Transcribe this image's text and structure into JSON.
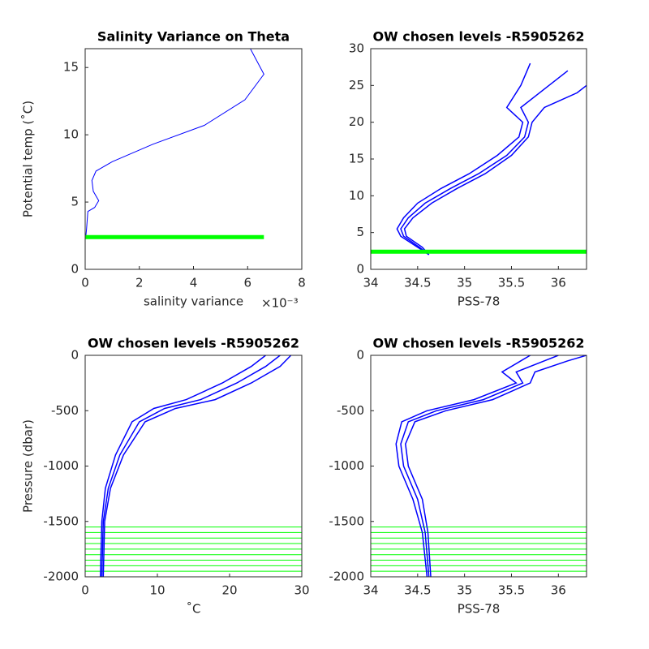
{
  "chart_data": [
    {
      "type": "line",
      "title": "Salinity Variance on Theta",
      "xlabel": "salinity variance",
      "x_exponent": "×10⁻³",
      "ylabel": "Potential temp (˚C)",
      "xlim": [
        0,
        8
      ],
      "ylim": [
        0,
        16.4
      ],
      "xticks": [
        0,
        2,
        4,
        6,
        8
      ],
      "yticks": [
        0,
        5,
        10,
        15
      ],
      "series": [
        {
          "color": "#0000ff",
          "linewidth": 1,
          "x": [
            6.1,
            6.6,
            5.9,
            4.4,
            2.5,
            1.0,
            0.4,
            0.25,
            0.3,
            0.5,
            0.35,
            0.1,
            0.05,
            0.02
          ],
          "values": [
            16.4,
            14.5,
            12.6,
            10.7,
            9.3,
            8.0,
            7.3,
            6.6,
            5.8,
            5.1,
            4.6,
            4.3,
            3.0,
            2.4
          ]
        },
        {
          "color": "#00ff00",
          "linewidth": 5,
          "x": [
            0,
            6.6
          ],
          "values": [
            2.4,
            2.4
          ]
        }
      ]
    },
    {
      "type": "line",
      "title": "OW chosen levels -R5905262",
      "xlabel": "PSS-78",
      "xlim": [
        34,
        36.3
      ],
      "ylim": [
        0,
        30
      ],
      "xticks": [
        34,
        34.5,
        35,
        35.5,
        36
      ],
      "yticks": [
        0,
        5,
        10,
        15,
        20,
        25,
        30
      ],
      "series": [
        {
          "color": "#0000ff",
          "linewidth": 1.5,
          "x": [
            34.62,
            34.5,
            34.32,
            34.28,
            34.35,
            34.5,
            34.75,
            35.05,
            35.35,
            35.58,
            35.62,
            35.45,
            35.6,
            35.7
          ],
          "values": [
            2,
            3,
            4.5,
            5.5,
            7,
            9,
            11,
            13,
            15.5,
            18,
            20,
            22,
            25,
            28
          ]
        },
        {
          "color": "#0000ff",
          "linewidth": 1.5,
          "x": [
            34.62,
            34.52,
            34.35,
            34.32,
            34.4,
            34.58,
            34.85,
            35.15,
            35.45,
            35.64,
            35.68,
            35.6,
            35.9,
            36.1
          ],
          "values": [
            2,
            3,
            4.5,
            5.5,
            7,
            9,
            11,
            13,
            15.5,
            18,
            20,
            22,
            25,
            27
          ]
        },
        {
          "color": "#0000ff",
          "linewidth": 1.5,
          "x": [
            34.62,
            34.55,
            34.38,
            34.36,
            34.45,
            34.65,
            34.92,
            35.22,
            35.5,
            35.68,
            35.72,
            35.85,
            36.2,
            36.3
          ],
          "values": [
            2,
            3,
            4.5,
            5.5,
            7,
            9,
            11,
            13,
            15.5,
            18,
            20,
            22,
            24,
            25
          ]
        },
        {
          "color": "#00ff00",
          "linewidth": 5,
          "x": [
            34,
            36.3
          ],
          "values": [
            2.4,
            2.4
          ]
        }
      ]
    },
    {
      "type": "line",
      "title": "OW chosen levels -R5905262",
      "xlabel": "˚C",
      "ylabel": "Pressure (dbar)",
      "xlim": [
        0,
        30
      ],
      "ylim": [
        -2000,
        0
      ],
      "xticks": [
        0,
        10,
        20,
        30
      ],
      "yticks": [
        -2000,
        -1500,
        -1000,
        -500,
        0
      ],
      "series": [
        {
          "color": "#0000ff",
          "linewidth": 1.5,
          "x": [
            2.1,
            2.3,
            2.8,
            4.2,
            6.5,
            9.5,
            14,
            19,
            23,
            25
          ],
          "values": [
            -2000,
            -1500,
            -1200,
            -900,
            -600,
            -480,
            -400,
            -250,
            -100,
            0
          ]
        },
        {
          "color": "#0000ff",
          "linewidth": 1.5,
          "x": [
            2.3,
            2.5,
            3.2,
            4.8,
            7.5,
            11,
            16,
            21,
            25,
            27
          ],
          "values": [
            -2000,
            -1500,
            -1200,
            -900,
            -600,
            -480,
            -400,
            -250,
            -100,
            0
          ]
        },
        {
          "color": "#0000ff",
          "linewidth": 1.5,
          "x": [
            2.5,
            2.7,
            3.5,
            5.3,
            8.3,
            12.5,
            18,
            23,
            27,
            28.5
          ],
          "values": [
            -2000,
            -1500,
            -1200,
            -900,
            -600,
            -480,
            -400,
            -250,
            -100,
            0
          ]
        }
      ],
      "hlines": {
        "color": "#00ff00",
        "values": [
          -1550,
          -1600,
          -1650,
          -1700,
          -1750,
          -1800,
          -1850,
          -1900,
          -1950,
          -2000
        ]
      }
    },
    {
      "type": "line",
      "title": "OW chosen levels -R5905262",
      "xlabel": "PSS-78",
      "xlim": [
        34,
        36.3
      ],
      "ylim": [
        -2000,
        0
      ],
      "xticks": [
        34,
        34.5,
        35,
        35.5,
        36
      ],
      "yticks": [
        -2000,
        -1500,
        -1000,
        -500,
        0
      ],
      "series": [
        {
          "color": "#0000ff",
          "linewidth": 1.5,
          "x": [
            34.6,
            34.55,
            34.45,
            34.3,
            34.27,
            34.33,
            34.6,
            35.1,
            35.55,
            35.4,
            35.6,
            35.7
          ],
          "values": [
            -2000,
            -1600,
            -1300,
            -1000,
            -800,
            -600,
            -500,
            -400,
            -250,
            -150,
            -50,
            0
          ]
        },
        {
          "color": "#0000ff",
          "linewidth": 1.5,
          "x": [
            34.62,
            34.58,
            34.5,
            34.35,
            34.32,
            34.4,
            34.7,
            35.2,
            35.62,
            35.55,
            35.85,
            36.0
          ],
          "values": [
            -2000,
            -1600,
            -1300,
            -1000,
            -800,
            -600,
            -500,
            -400,
            -250,
            -150,
            -50,
            0
          ]
        },
        {
          "color": "#0000ff",
          "linewidth": 1.5,
          "x": [
            34.64,
            34.61,
            34.55,
            34.4,
            34.37,
            34.47,
            34.8,
            35.3,
            35.7,
            35.75,
            36.1,
            36.3
          ],
          "values": [
            -2000,
            -1600,
            -1300,
            -1000,
            -800,
            -600,
            -500,
            -400,
            -250,
            -150,
            -50,
            0
          ]
        }
      ],
      "hlines": {
        "color": "#00ff00",
        "values": [
          -1550,
          -1600,
          -1650,
          -1700,
          -1750,
          -1800,
          -1850,
          -1900,
          -1950,
          -2000
        ]
      }
    }
  ]
}
